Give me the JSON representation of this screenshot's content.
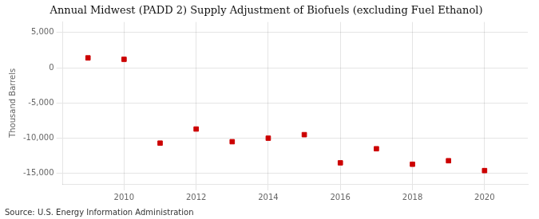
{
  "chart_data": {
    "type": "scatter",
    "title": "Annual Midwest (PADD 2) Supply Adjustment of Biofuels (excluding Fuel Ethanol)",
    "ylabel": "Thousand Barrels",
    "annotations": [
      "Source: U.S. Energy Information Administration"
    ],
    "x": [
      2009,
      2010,
      2011,
      2012,
      2013,
      2014,
      2015,
      2016,
      2017,
      2018,
      2019,
      2020
    ],
    "values": [
      1400,
      1200,
      -10700,
      -8700,
      -10500,
      -10000,
      -9500,
      -13500,
      -11500,
      -13700,
      -13200,
      -14600
    ],
    "color": "#cc0000",
    "marker": "square",
    "xlim": [
      2008.3,
      2021.2
    ],
    "xticks": [
      2010,
      2012,
      2014,
      2016,
      2018,
      2020
    ],
    "ylim": [
      -16500,
      6500
    ],
    "yticks": [
      {
        "value": -15000,
        "label": "-15,000"
      },
      {
        "value": -10000,
        "label": "-10,000"
      },
      {
        "value": -5000,
        "label": "-5,000"
      },
      0,
      {
        "value": 5000,
        "label": "5,000"
      }
    ],
    "grid": true
  }
}
